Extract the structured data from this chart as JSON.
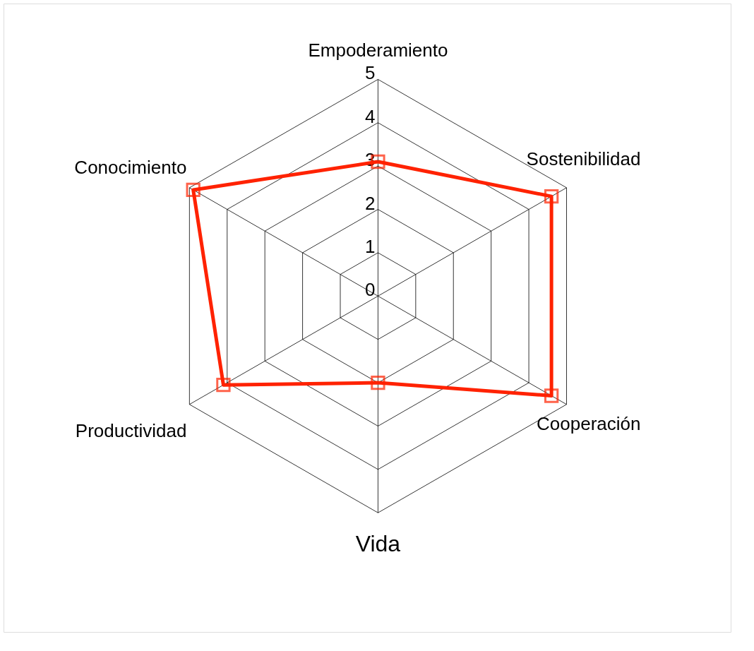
{
  "chart_data": {
    "type": "radar",
    "categories": [
      "Empoderamiento",
      "Sostenibilidad",
      "Cooperación",
      "Vida",
      "Productividad",
      "Conocimiento"
    ],
    "series": [
      {
        "color": "#ff2200",
        "values": [
          3.1,
          4.6,
          4.6,
          2.0,
          4.1,
          4.9
        ]
      }
    ],
    "ylim": [
      0,
      5
    ],
    "yticks": [
      0,
      1,
      2,
      3,
      4,
      5
    ],
    "grid": true,
    "marker": "square"
  }
}
